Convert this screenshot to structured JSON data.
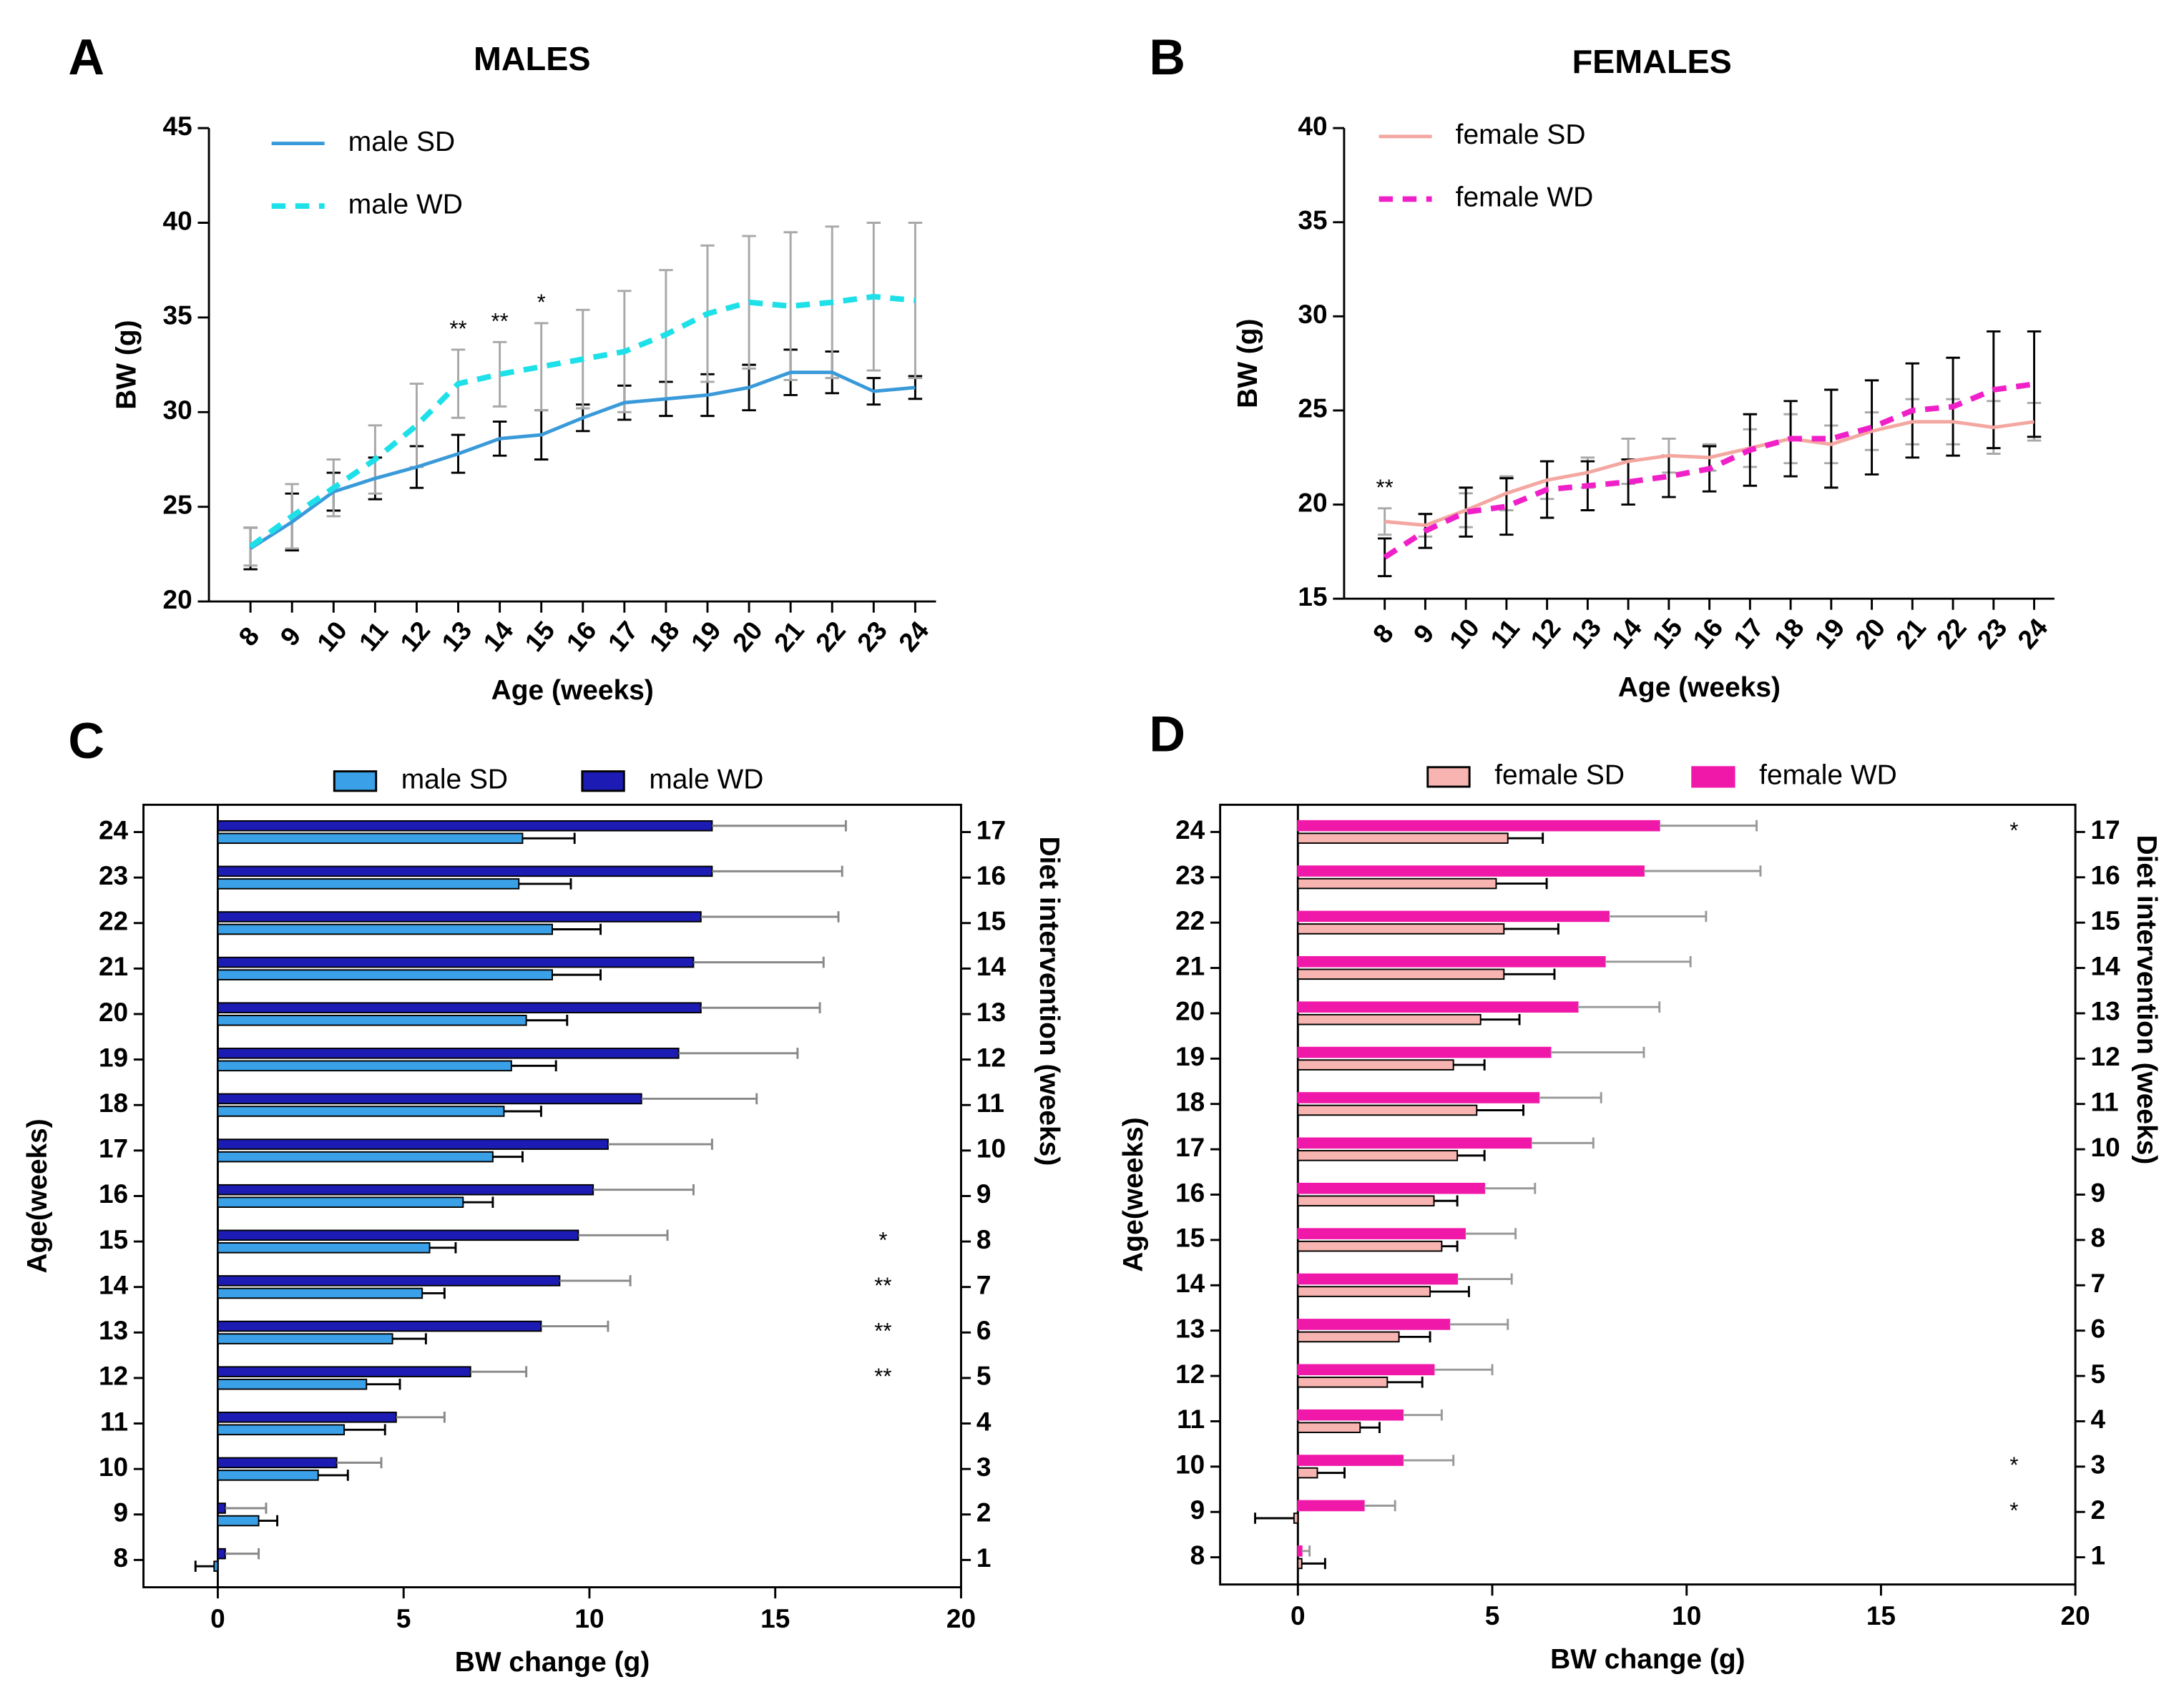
{
  "chart_data": [
    {
      "type": "line",
      "panel": "A",
      "title": "MALES",
      "xlabel": "Age (weeks)",
      "ylabel": "BW (g)",
      "x": [
        8,
        9,
        10,
        11,
        12,
        13,
        14,
        15,
        16,
        17,
        18,
        19,
        20,
        21,
        22,
        23,
        24
      ],
      "xlim": [
        7,
        24.5
      ],
      "xticks": [
        8,
        9,
        10,
        11,
        12,
        13,
        14,
        15,
        16,
        17,
        18,
        19,
        20,
        21,
        22,
        23,
        24
      ],
      "ylim": [
        20,
        45
      ],
      "yticks": [
        20,
        25,
        30,
        35,
        40,
        45
      ],
      "legend": "upper left",
      "series": [
        {
          "name": "male SD",
          "color": "#3a9ad9",
          "line_style": "solid",
          "error_color": "#000000",
          "values": [
            22.8,
            24.2,
            25.8,
            26.5,
            27.1,
            27.8,
            28.6,
            28.8,
            29.7,
            30.5,
            30.7,
            30.9,
            31.3,
            32.1,
            32.1,
            31.1,
            31.3
          ],
          "errors": [
            1.1,
            1.5,
            1.0,
            1.1,
            1.1,
            1.0,
            0.9,
            1.3,
            0.7,
            0.9,
            0.9,
            1.1,
            1.2,
            1.2,
            1.1,
            0.7,
            0.6
          ]
        },
        {
          "name": "male WD",
          "color": "#1ee0e8",
          "line_style": "dashed",
          "error_color": "#a8a8a8",
          "values": [
            22.9,
            24.5,
            26.0,
            27.5,
            29.3,
            31.5,
            32.0,
            32.4,
            32.8,
            33.2,
            34.1,
            35.2,
            35.8,
            35.6,
            35.8,
            36.1,
            35.9
          ],
          "errors": [
            1.0,
            1.7,
            1.5,
            1.8,
            2.2,
            1.8,
            1.7,
            2.3,
            2.6,
            3.2,
            3.4,
            3.6,
            3.5,
            3.9,
            4.0,
            3.9,
            4.1
          ]
        }
      ],
      "annotations": [
        {
          "text": "**",
          "x": 13
        },
        {
          "text": "**",
          "x": 14
        },
        {
          "text": "*",
          "x": 15
        }
      ]
    },
    {
      "type": "line",
      "panel": "B",
      "title": "FEMALES",
      "xlabel": "Age (weeks)",
      "ylabel": "BW (g)",
      "x": [
        8,
        9,
        10,
        11,
        12,
        13,
        14,
        15,
        16,
        17,
        18,
        19,
        20,
        21,
        22,
        23,
        24
      ],
      "xlim": [
        7,
        24.5
      ],
      "xticks": [
        8,
        9,
        10,
        11,
        12,
        13,
        14,
        15,
        16,
        17,
        18,
        19,
        20,
        21,
        22,
        23,
        24
      ],
      "ylim": [
        15,
        40
      ],
      "yticks": [
        15,
        20,
        25,
        30,
        35,
        40
      ],
      "legend": "upper left",
      "series": [
        {
          "name": "female SD",
          "color": "#f4a6a0",
          "line_style": "solid",
          "error_color": "#a8a8a8",
          "values": [
            19.1,
            18.9,
            19.7,
            20.6,
            21.3,
            21.7,
            22.3,
            22.6,
            22.5,
            23.0,
            23.5,
            23.2,
            23.9,
            24.4,
            24.4,
            24.1,
            24.4
          ],
          "errors": [
            0.7,
            0.6,
            0.9,
            0.9,
            1.0,
            0.8,
            1.2,
            0.9,
            0.7,
            1.0,
            1.3,
            1.0,
            1.0,
            1.2,
            1.2,
            1.4,
            1.0
          ]
        },
        {
          "name": "female  WD",
          "color": "#f020c8",
          "line_style": "dashed",
          "error_color": "#000000",
          "values": [
            17.2,
            18.6,
            19.6,
            19.9,
            20.8,
            21.0,
            21.2,
            21.5,
            21.9,
            22.9,
            23.5,
            23.5,
            24.1,
            25.0,
            25.2,
            26.1,
            26.4
          ],
          "errors": [
            1.0,
            0.9,
            1.3,
            1.5,
            1.5,
            1.3,
            1.2,
            1.1,
            1.2,
            1.9,
            2.0,
            2.6,
            2.5,
            2.5,
            2.6,
            3.1,
            2.8
          ]
        }
      ],
      "annotations": [
        {
          "text": "**",
          "x": 8
        }
      ]
    },
    {
      "type": "bar",
      "orientation": "horizontal",
      "panel": "C",
      "xlabel": "BW change (g)",
      "ylabel": "Age(weeks)",
      "y2label": "Diet intervention (weeks)",
      "categories": [
        8,
        9,
        10,
        11,
        12,
        13,
        14,
        15,
        16,
        17,
        18,
        19,
        20,
        21,
        22,
        23,
        24
      ],
      "y2categories": [
        1,
        2,
        3,
        4,
        5,
        6,
        7,
        8,
        9,
        10,
        11,
        12,
        13,
        14,
        15,
        16,
        17
      ],
      "xlim": [
        -2,
        20
      ],
      "xticks": [
        0,
        5,
        10,
        15,
        20
      ],
      "legend": "top",
      "series": [
        {
          "name": "male SD",
          "color": "#3aa0e8",
          "edgecolor": "#000000",
          "error_color": "#000000",
          "values": [
            -0.1,
            1.1,
            2.7,
            3.4,
            4.0,
            4.7,
            5.5,
            5.7,
            6.6,
            7.4,
            7.7,
            7.9,
            8.3,
            9.0,
            9.0,
            8.1,
            8.2
          ],
          "errors": [
            0.5,
            0.5,
            0.8,
            1.1,
            0.9,
            0.9,
            0.6,
            0.7,
            0.8,
            0.8,
            1.0,
            1.2,
            1.1,
            1.3,
            1.3,
            1.4,
            1.4
          ]
        },
        {
          "name": "male WD",
          "color": "#1c1cb4",
          "edgecolor": "#000000",
          "error_color": "#888888",
          "values": [
            0.2,
            0.2,
            3.2,
            4.8,
            6.8,
            8.7,
            9.2,
            9.7,
            10.1,
            10.5,
            11.4,
            12.4,
            13.0,
            12.8,
            13.0,
            13.3,
            13.3
          ],
          "errors": [
            0.9,
            1.1,
            1.2,
            1.3,
            1.5,
            1.8,
            1.9,
            2.4,
            2.7,
            2.8,
            3.1,
            3.2,
            3.2,
            3.5,
            3.7,
            3.5,
            3.6
          ]
        }
      ],
      "annotations": [
        {
          "text": "*",
          "category": 15
        },
        {
          "text": "**",
          "category": 14
        },
        {
          "text": "**",
          "category": 13
        },
        {
          "text": "**",
          "category": 12
        }
      ]
    },
    {
      "type": "bar",
      "orientation": "horizontal",
      "panel": "D",
      "xlabel": "BW change (g)",
      "ylabel": "Age(weeks)",
      "y2label": "Diet intervention (weeks)",
      "categories": [
        8,
        9,
        10,
        11,
        12,
        13,
        14,
        15,
        16,
        17,
        18,
        19,
        20,
        21,
        22,
        23,
        24
      ],
      "y2categories": [
        1,
        2,
        3,
        4,
        5,
        6,
        7,
        8,
        9,
        10,
        11,
        12,
        13,
        14,
        15,
        16,
        17
      ],
      "xlim": [
        -2,
        20
      ],
      "xticks": [
        0,
        5,
        10,
        15,
        20
      ],
      "legend": "top",
      "series": [
        {
          "name": "female SD",
          "color": "#f8b4b0",
          "edgecolor": "#000000",
          "error_color": "#000000",
          "values": [
            0.1,
            -0.1,
            0.5,
            1.6,
            2.3,
            2.6,
            3.4,
            3.7,
            3.5,
            4.1,
            4.6,
            4.0,
            4.7,
            5.3,
            5.3,
            5.1,
            5.4
          ],
          "errors": [
            0.6,
            1.0,
            0.7,
            0.5,
            0.9,
            0.8,
            1.0,
            0.4,
            0.6,
            0.7,
            1.2,
            0.8,
            1.0,
            1.3,
            1.4,
            1.3,
            0.9
          ]
        },
        {
          "name": "female  WD",
          "color": "#f018a8",
          "edgecolor": "#f018a8",
          "error_color": "#999999",
          "values": [
            0.1,
            1.7,
            2.7,
            2.7,
            3.5,
            3.9,
            4.1,
            4.3,
            4.8,
            6.0,
            6.2,
            6.5,
            7.2,
            7.9,
            8.0,
            8.9,
            9.3
          ],
          "errors": [
            0.2,
            0.8,
            1.3,
            1.0,
            1.5,
            1.5,
            1.4,
            1.3,
            1.3,
            1.6,
            1.6,
            2.4,
            2.1,
            2.2,
            2.5,
            3.0,
            2.5
          ]
        }
      ],
      "annotations": [
        {
          "text": "*",
          "category": 24
        },
        {
          "text": "*",
          "category": 10
        },
        {
          "text": "*",
          "category": 9
        }
      ]
    }
  ]
}
